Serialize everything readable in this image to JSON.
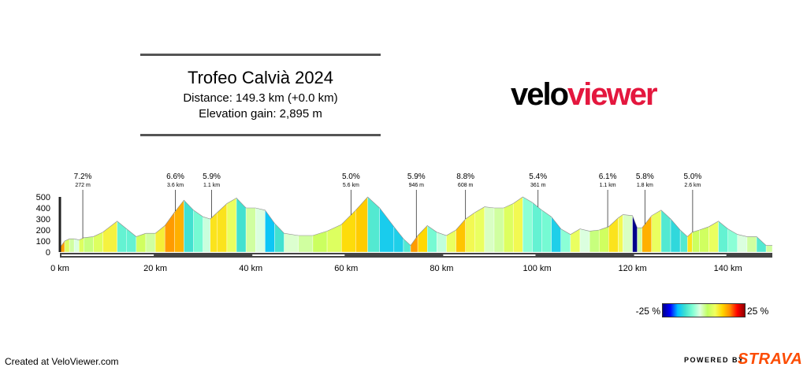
{
  "header": {
    "title": "Trofeo Calvià 2024",
    "distance_text": "Distance: 149.3 km (+0.0 km)",
    "elevation_text": "Elevation gain: 2,895 m"
  },
  "logo": {
    "velo": "velo",
    "viewer": "viewer"
  },
  "footer": {
    "created": "Created at VeloViewer.com",
    "powered": "POWERED BY",
    "strava": "STRAVA"
  },
  "legend": {
    "min": "-25 %",
    "max": "25 %"
  },
  "chart_data": {
    "type": "area",
    "xlabel": "",
    "ylabel": "",
    "x_ticks": [
      0,
      20,
      40,
      60,
      80,
      100,
      120,
      140
    ],
    "x_tick_labels": [
      "0 km",
      "20 km",
      "40 km",
      "60 km",
      "80 km",
      "100 km",
      "120 km",
      "140 km"
    ],
    "y_ticks": [
      0,
      100,
      200,
      300,
      400,
      500
    ],
    "y_tick_labels": [
      "0",
      "100",
      "200",
      "300",
      "400",
      "500"
    ],
    "xlim": [
      0,
      149.3
    ],
    "ylim": [
      0,
      500
    ],
    "profile": [
      [
        0,
        40
      ],
      [
        1,
        100
      ],
      [
        2,
        120
      ],
      [
        3,
        120
      ],
      [
        4,
        110
      ],
      [
        5,
        130
      ],
      [
        7,
        140
      ],
      [
        9,
        180
      ],
      [
        12,
        280
      ],
      [
        14,
        210
      ],
      [
        16,
        140
      ],
      [
        18,
        170
      ],
      [
        20,
        170
      ],
      [
        22,
        240
      ],
      [
        24,
        360
      ],
      [
        26,
        470
      ],
      [
        28,
        380
      ],
      [
        30,
        320
      ],
      [
        31.5,
        300
      ],
      [
        33,
        360
      ],
      [
        35,
        440
      ],
      [
        37,
        490
      ],
      [
        39,
        400
      ],
      [
        41,
        400
      ],
      [
        43,
        380
      ],
      [
        45,
        260
      ],
      [
        47,
        170
      ],
      [
        50,
        150
      ],
      [
        53,
        150
      ],
      [
        56,
        190
      ],
      [
        59,
        250
      ],
      [
        62,
        380
      ],
      [
        64.5,
        500
      ],
      [
        67,
        400
      ],
      [
        70,
        230
      ],
      [
        72,
        120
      ],
      [
        73.5,
        60
      ],
      [
        75,
        150
      ],
      [
        77,
        240
      ],
      [
        79,
        180
      ],
      [
        81,
        150
      ],
      [
        83,
        200
      ],
      [
        85,
        300
      ],
      [
        87,
        360
      ],
      [
        89,
        410
      ],
      [
        91,
        400
      ],
      [
        93,
        400
      ],
      [
        95,
        440
      ],
      [
        97,
        500
      ],
      [
        99,
        450
      ],
      [
        101,
        380
      ],
      [
        103,
        320
      ],
      [
        105,
        210
      ],
      [
        107,
        160
      ],
      [
        109,
        210
      ],
      [
        111,
        190
      ],
      [
        113,
        200
      ],
      [
        115,
        230
      ],
      [
        117,
        310
      ],
      [
        118,
        340
      ],
      [
        120,
        330
      ],
      [
        121,
        220
      ],
      [
        122,
        220
      ],
      [
        124,
        330
      ],
      [
        126,
        380
      ],
      [
        128,
        300
      ],
      [
        130,
        200
      ],
      [
        131.5,
        140
      ],
      [
        132.5,
        180
      ],
      [
        134,
        200
      ],
      [
        136,
        230
      ],
      [
        138,
        280
      ],
      [
        140,
        210
      ],
      [
        142,
        160
      ],
      [
        144,
        140
      ],
      [
        146,
        140
      ],
      [
        148,
        60
      ],
      [
        149.3,
        60
      ]
    ],
    "climbs": [
      {
        "km": 4.8,
        "grade": "7.2%",
        "detail": "272 m"
      },
      {
        "km": 24.2,
        "grade": "6.6%",
        "detail": "3.6 km"
      },
      {
        "km": 31.8,
        "grade": "5.9%",
        "detail": "1.1 km"
      },
      {
        "km": 61.0,
        "grade": "5.0%",
        "detail": "5.6 km"
      },
      {
        "km": 74.7,
        "grade": "5.9%",
        "detail": "946 m"
      },
      {
        "km": 85.0,
        "grade": "8.8%",
        "detail": "608 m"
      },
      {
        "km": 100.2,
        "grade": "5.4%",
        "detail": "361 m"
      },
      {
        "km": 114.8,
        "grade": "6.1%",
        "detail": "1.1 km"
      },
      {
        "km": 122.6,
        "grade": "5.8%",
        "detail": "1.8 km"
      },
      {
        "km": 132.6,
        "grade": "5.0%",
        "detail": "2.6 km"
      }
    ],
    "color_scale": {
      "range": [
        -25,
        25
      ],
      "stops": [
        "#00008b",
        "#0000ff",
        "#00bfff",
        "#40e0d0",
        "#7fffd4",
        "#e0ffe0",
        "#c0ff60",
        "#f0ff60",
        "#ffd700",
        "#ff8c00",
        "#ff0000",
        "#8b0000"
      ]
    }
  }
}
